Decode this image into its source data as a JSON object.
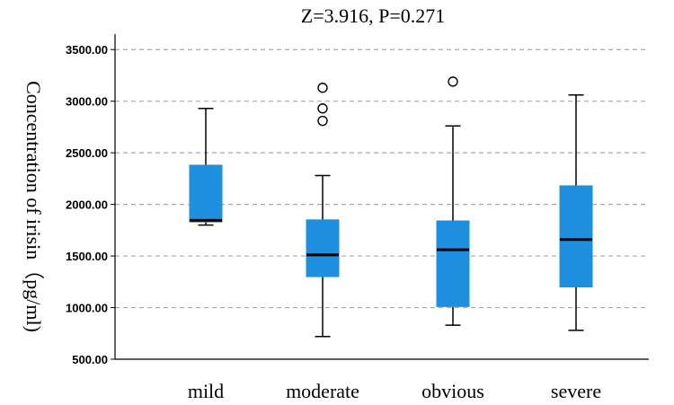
{
  "chart_data": {
    "type": "box",
    "title": "Z=3.916, P=0.271",
    "xlabel": "",
    "ylabel": "Concentration of irisin（pg/ml)",
    "ylim": [
      500,
      3650
    ],
    "y_ticks": [
      500,
      1000,
      1500,
      2000,
      2500,
      3000,
      3500
    ],
    "y_tick_labels": [
      "500.00",
      "1000.00",
      "1500.00",
      "2000.00",
      "2500.00",
      "3000.00",
      "3500.00"
    ],
    "grid": "horizontal dashed",
    "box_color": "#1f8fe0",
    "categories": [
      "mild",
      "moderate",
      "obvious",
      "severe"
    ],
    "boxes": [
      {
        "name": "mild",
        "whisker_low": 1800,
        "q1": 1830,
        "median": 1845,
        "q3": 2380,
        "whisker_high": 2930,
        "outliers": []
      },
      {
        "name": "moderate",
        "whisker_low": 720,
        "q1": 1300,
        "median": 1510,
        "q3": 1850,
        "whisker_high": 2280,
        "outliers": [
          2810,
          2930,
          3130
        ]
      },
      {
        "name": "obvious",
        "whisker_low": 830,
        "q1": 1010,
        "median": 1560,
        "q3": 1840,
        "whisker_high": 2760,
        "outliers": [
          3190
        ]
      },
      {
        "name": "severe",
        "whisker_low": 780,
        "q1": 1200,
        "median": 1660,
        "q3": 2180,
        "whisker_high": 3060,
        "outliers": []
      }
    ]
  }
}
